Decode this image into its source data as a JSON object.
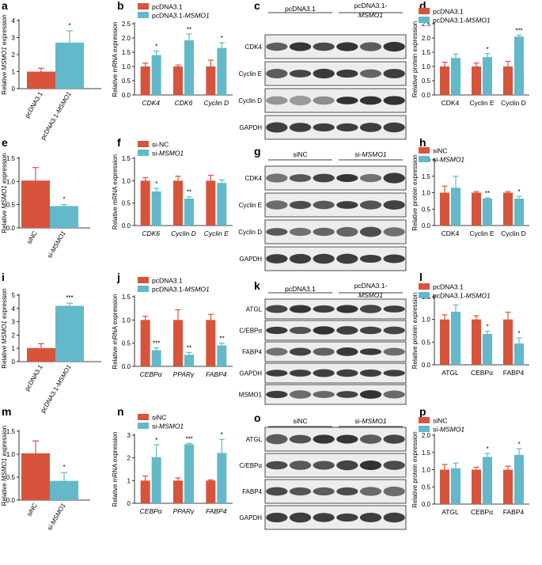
{
  "colors": {
    "control": "#d8533b",
    "treat": "#63b8c9",
    "text": "#000000"
  },
  "chart_data": [
    {
      "id": "a",
      "type": "bar",
      "ylabel": "Relative MSMO1 expression",
      "ylim": [
        0,
        4
      ],
      "yticks": [
        0,
        1,
        2,
        3,
        4
      ],
      "categories": [
        "pcDNA3.1",
        "pcDNA3.1-MSMO1"
      ],
      "values": [
        1.0,
        2.7
      ],
      "errors": [
        0.2,
        0.7
      ],
      "sig": [
        "",
        "*"
      ]
    },
    {
      "id": "b",
      "type": "bar",
      "ylabel": "Relative mRNA expression",
      "ylim": [
        0,
        2.5
      ],
      "yticks": [
        0,
        0.5,
        1,
        1.5,
        2,
        2.5
      ],
      "legend": [
        "pcDNA3.1",
        "pcDNA3.1-MSMO1"
      ],
      "categories": [
        "CDK4",
        "CDK6",
        "Cyclin D"
      ],
      "series": [
        {
          "name": "pcDNA3.1",
          "values": [
            1.0,
            1.0,
            1.0
          ],
          "errors": [
            0.12,
            0.05,
            0.22
          ]
        },
        {
          "name": "pcDNA3.1-MSMO1",
          "values": [
            1.4,
            1.92,
            1.65
          ],
          "errors": [
            0.14,
            0.22,
            0.18
          ]
        }
      ],
      "sig": [
        "*",
        "**",
        "*"
      ]
    },
    {
      "id": "d",
      "type": "bar",
      "ylabel": "Relative protein expression",
      "ylim": [
        0,
        2.5
      ],
      "yticks": [
        0,
        0.5,
        1,
        1.5,
        2,
        2.5
      ],
      "legend": [
        "pcDNA3.1",
        "pcDNA3.1-MSMO1"
      ],
      "categories": [
        "CDK4",
        "Cyclin E",
        "Cyclin D"
      ],
      "series": [
        {
          "name": "pcDNA3.1",
          "values": [
            1.0,
            1.0,
            1.0
          ],
          "errors": [
            0.15,
            0.12,
            0.18
          ]
        },
        {
          "name": "pcDNA3.1-MSMO1",
          "values": [
            1.3,
            1.33,
            2.05
          ],
          "errors": [
            0.14,
            0.12,
            0.05
          ]
        }
      ],
      "sig": [
        "",
        "*",
        "***"
      ]
    },
    {
      "id": "e",
      "type": "bar",
      "ylabel": "Relative MSMO1 expression",
      "ylim": [
        0,
        1.5
      ],
      "yticks": [
        0,
        0.5,
        1,
        1.5
      ],
      "categories": [
        "siNC",
        "si-MSMO1"
      ],
      "values": [
        1.02,
        0.47
      ],
      "errors": [
        0.28,
        0.03
      ],
      "sig": [
        "",
        "*"
      ]
    },
    {
      "id": "f",
      "type": "bar",
      "ylabel": "Relative mRNA expression",
      "ylim": [
        0,
        1.5
      ],
      "yticks": [
        0,
        0.5,
        1,
        1.5
      ],
      "legend": [
        "si-NC",
        "si-MSMO1"
      ],
      "categories": [
        "CDK6",
        "Cyclin D",
        "Cyclin E"
      ],
      "series": [
        {
          "name": "si-NC",
          "values": [
            1.0,
            1.0,
            1.0
          ],
          "errors": [
            0.07,
            0.1,
            0.12
          ]
        },
        {
          "name": "si-MSMO1",
          "values": [
            0.76,
            0.6,
            0.95
          ],
          "errors": [
            0.07,
            0.04,
            0.07
          ]
        }
      ],
      "sig": [
        "*",
        "**",
        ""
      ]
    },
    {
      "id": "h",
      "type": "bar",
      "ylabel": "Relative protein expression",
      "ylim": [
        0,
        2
      ],
      "yticks": [
        0,
        0.5,
        1,
        1.5,
        2
      ],
      "legend": [
        "siNC",
        "si-MSMO1"
      ],
      "categories": [
        "CDK4",
        "Cyclin E",
        "Cyclin D"
      ],
      "series": [
        {
          "name": "siNC",
          "values": [
            1.0,
            1.0,
            1.0
          ],
          "errors": [
            0.2,
            0.03,
            0.03
          ]
        },
        {
          "name": "si-MSMO1",
          "values": [
            1.15,
            0.82,
            0.82
          ],
          "errors": [
            0.35,
            0.02,
            0.07
          ]
        }
      ],
      "sig": [
        "",
        "**",
        "*"
      ]
    },
    {
      "id": "i",
      "type": "bar",
      "ylabel": "Relative MSMO1 expression",
      "ylim": [
        0,
        5
      ],
      "yticks": [
        0,
        1,
        2,
        3,
        4,
        5
      ],
      "categories": [
        "pcDNA3.1",
        "pcDNA3.1-MSMO1"
      ],
      "values": [
        1.02,
        4.2
      ],
      "errors": [
        0.33,
        0.2
      ],
      "sig": [
        "",
        "***"
      ]
    },
    {
      "id": "j",
      "type": "bar",
      "ylabel": "Relative mRNA expression",
      "ylim": [
        0,
        1.5
      ],
      "yticks": [
        0,
        0.5,
        1,
        1.5
      ],
      "legend": [
        "pcDNA3.1",
        "pcDNA3.1-MSMO1"
      ],
      "categories": [
        "CEBPα",
        "PPARγ",
        "FABP4"
      ],
      "series": [
        {
          "name": "pcDNA3.1",
          "values": [
            1.0,
            1.0,
            1.0
          ],
          "errors": [
            0.08,
            0.22,
            0.12
          ]
        },
        {
          "name": "pcDNA3.1-MSMO1",
          "values": [
            0.35,
            0.25,
            0.45
          ],
          "errors": [
            0.05,
            0.05,
            0.05
          ]
        }
      ],
      "sig": [
        "***",
        "**",
        "**"
      ]
    },
    {
      "id": "l",
      "type": "bar",
      "ylabel": "Relative protein expression",
      "ylim": [
        0,
        1.5
      ],
      "yticks": [
        0,
        0.5,
        1,
        1.5
      ],
      "legend": [
        "pcDNA3.1",
        "pcDNA3.1-MSMO1"
      ],
      "categories": [
        "ATGL",
        "CEBPα",
        "FABP4"
      ],
      "series": [
        {
          "name": "pcDNA3.1",
          "values": [
            1.0,
            1.0,
            1.0
          ],
          "errors": [
            0.1,
            0.08,
            0.16
          ]
        },
        {
          "name": "pcDNA3.1-MSMO1",
          "values": [
            1.17,
            0.68,
            0.47
          ],
          "errors": [
            0.15,
            0.06,
            0.12
          ]
        }
      ],
      "sig": [
        "",
        "*",
        "*"
      ]
    },
    {
      "id": "m",
      "type": "bar",
      "ylabel": "Relative MSMO1 expression",
      "ylim": [
        0,
        1.5
      ],
      "yticks": [
        0,
        0.5,
        1,
        1.5
      ],
      "categories": [
        "siNC",
        "si-MSMO1"
      ],
      "values": [
        1.02,
        0.42
      ],
      "errors": [
        0.27,
        0.18
      ],
      "sig": [
        "",
        "*"
      ]
    },
    {
      "id": "n",
      "type": "bar",
      "ylabel": "Relative mRNA expression",
      "ylim": [
        0,
        3
      ],
      "yticks": [
        0,
        1,
        2,
        3
      ],
      "legend": [
        "siNC",
        "si-MSMO1"
      ],
      "categories": [
        "CEBPα",
        "PPARγ",
        "FABP4"
      ],
      "series": [
        {
          "name": "siNC",
          "values": [
            1.0,
            1.0,
            1.0
          ],
          "errors": [
            0.2,
            0.12,
            0.03
          ]
        },
        {
          "name": "si-MSMO1",
          "values": [
            2.03,
            2.6,
            2.22
          ],
          "errors": [
            0.55,
            0.04,
            0.6
          ]
        }
      ],
      "sig": [
        "*",
        "***",
        "*"
      ]
    },
    {
      "id": "p",
      "type": "bar",
      "ylabel": "Relative protein expression",
      "ylim": [
        0,
        2
      ],
      "yticks": [
        0,
        0.5,
        1,
        1.5,
        2
      ],
      "legend": [
        "siNC",
        "si-MSMO1"
      ],
      "categories": [
        "ATGL",
        "CEBPα",
        "FABP4"
      ],
      "series": [
        {
          "name": "siNC",
          "values": [
            1.0,
            1.0,
            1.0
          ],
          "errors": [
            0.15,
            0.07,
            0.1
          ]
        },
        {
          "name": "si-MSMO1",
          "values": [
            1.04,
            1.37,
            1.43
          ],
          "errors": [
            0.15,
            0.1,
            0.18
          ]
        }
      ],
      "sig": [
        "",
        "*",
        "*"
      ]
    }
  ],
  "blots": [
    {
      "id": "c",
      "group_left": "pcDNA3.1",
      "group_right": "pcDNA3.1-MSMO1",
      "bands": [
        "CDK4",
        "Cyclin E",
        "Cyclin D",
        "GAPDH"
      ]
    },
    {
      "id": "g",
      "group_left": "siNC",
      "group_right": "si-MSMO1",
      "bands": [
        "CDK4",
        "Cyclin E",
        "Cyclin D",
        "GAPDH"
      ]
    },
    {
      "id": "k",
      "group_left": "pcDNA3.1",
      "group_right": "pcDNA3.1-MSMO1",
      "bands": [
        "ATGL",
        "C/EBPα",
        "FABP4",
        "GAPDH",
        "MSMO1"
      ]
    },
    {
      "id": "o",
      "group_left": "siNC",
      "group_right": "si-MSMO1",
      "bands": [
        "ATGL",
        "C/EBPα",
        "FABP4",
        "GAPDH"
      ]
    }
  ]
}
